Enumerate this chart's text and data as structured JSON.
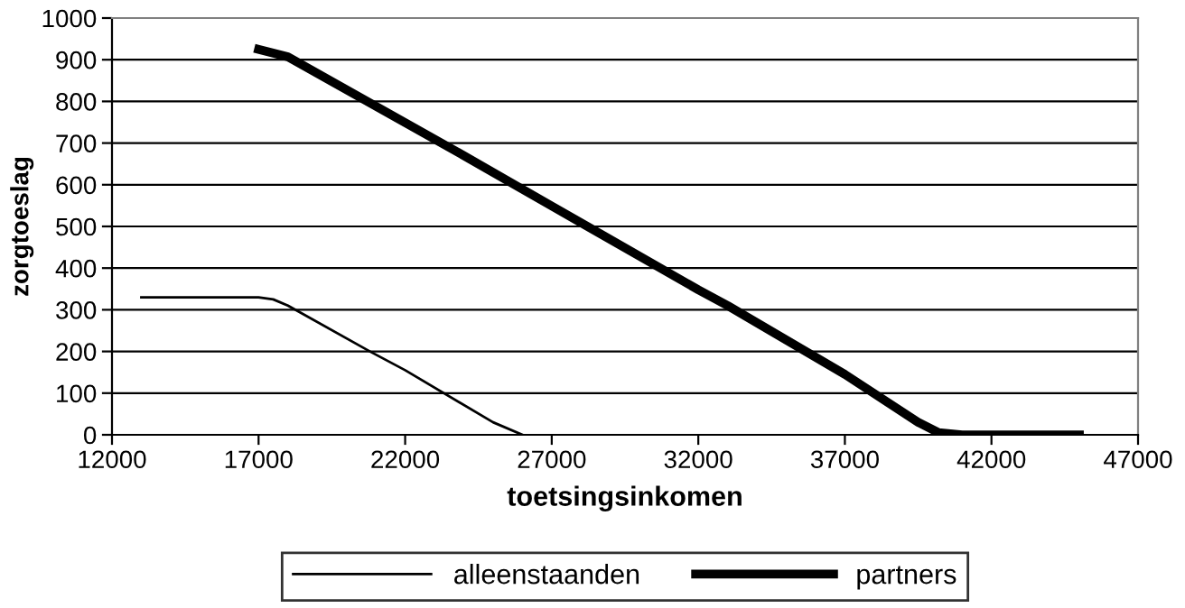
{
  "chart_data": {
    "type": "line",
    "xlabel": "toetsingsinkomen",
    "ylabel": "zorgtoeslag",
    "xlim": [
      12000,
      47000
    ],
    "xticks": [
      12000,
      17000,
      22000,
      27000,
      32000,
      37000,
      42000,
      47000
    ],
    "ylim": [
      0,
      1000
    ],
    "yticks": [
      0,
      100,
      200,
      300,
      400,
      500,
      600,
      700,
      800,
      900,
      1000
    ],
    "grid": "y",
    "legend": "bottom",
    "marker": "none",
    "line_style": "solid",
    "series": [
      {
        "name": "alleenstaanden",
        "color": "#000000",
        "x": [
          13000,
          17000,
          17500,
          18000,
          20800,
          22000,
          25000,
          26000
        ],
        "values": [
          330,
          330,
          325,
          310,
          200,
          155,
          30,
          0
        ]
      },
      {
        "name": "partners",
        "color": "#000000",
        "x": [
          17000,
          18000,
          24000,
          27000,
          32000,
          33000,
          37000,
          39500,
          40200,
          41000,
          45000
        ],
        "values": [
          925,
          907,
          670,
          549,
          348,
          310,
          145,
          30,
          5,
          0,
          0
        ]
      }
    ]
  }
}
